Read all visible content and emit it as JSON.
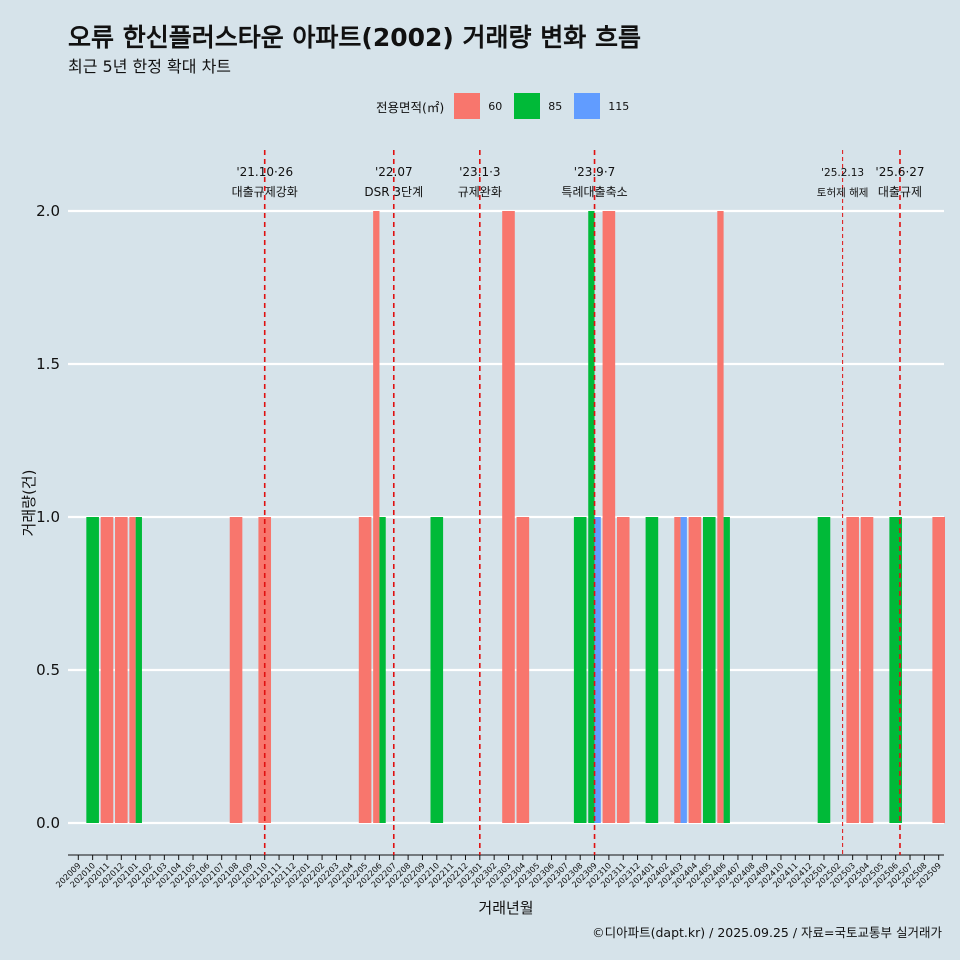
{
  "header": {
    "title": "오류 한신플러스타운 아파트(2002) 거래량 변화 흐름",
    "subtitle": "최근 5년 한정 확대 차트"
  },
  "legend": {
    "title": "전용면적(㎡)",
    "items": [
      {
        "label": "60",
        "color": "#F8766D"
      },
      {
        "label": "85",
        "color": "#00BA38"
      },
      {
        "label": "115",
        "color": "#619CFF"
      }
    ]
  },
  "footer": {
    "caption": "©디아파트(dapt.kr) / 2025.09.25 / 자료=국토교통부 실거래가"
  },
  "chart_data": {
    "type": "bar",
    "title": "오류 한신플러스타운 아파트(2002) 거래량 변화 흐름",
    "xlabel": "거래년월",
    "ylabel": "거래량(건)",
    "ylim": [
      0,
      2.2
    ],
    "yticks": [
      0.0,
      0.5,
      1.0,
      1.5,
      2.0
    ],
    "ytick_labels": [
      "0.0",
      "0.5",
      "1.0",
      "1.5",
      "2.0"
    ],
    "categories": [
      "202009",
      "202010",
      "202011",
      "202012",
      "202101",
      "202102",
      "202103",
      "202104",
      "202105",
      "202106",
      "202107",
      "202108",
      "202109",
      "202110",
      "202111",
      "202112",
      "202201",
      "202202",
      "202203",
      "202204",
      "202205",
      "202206",
      "202207",
      "202208",
      "202209",
      "202210",
      "202211",
      "202212",
      "202301",
      "202302",
      "202303",
      "202304",
      "202305",
      "202306",
      "202307",
      "202308",
      "202309",
      "202310",
      "202311",
      "202312",
      "202401",
      "202402",
      "202403",
      "202404",
      "202405",
      "202406",
      "202407",
      "202408",
      "202409",
      "202410",
      "202411",
      "202412",
      "202501",
      "202502",
      "202503",
      "202504",
      "202505",
      "202506",
      "202507",
      "202508",
      "202509"
    ],
    "series": [
      {
        "name": "60",
        "color": "#F8766D",
        "values": [
          0,
          0,
          1,
          1,
          1,
          0,
          0,
          0,
          0,
          0,
          0,
          1,
          0,
          1,
          0,
          0,
          0,
          0,
          0,
          0,
          1,
          2,
          0,
          0,
          0,
          0,
          0,
          0,
          0,
          0,
          2,
          1,
          0,
          0,
          0,
          0,
          0,
          2,
          1,
          0,
          0,
          0,
          1,
          1,
          0,
          2,
          0,
          0,
          0,
          0,
          0,
          0,
          0,
          0,
          1,
          1,
          0,
          0,
          0,
          0,
          1
        ]
      },
      {
        "name": "85",
        "color": "#00BA38",
        "values": [
          0,
          1,
          0,
          0,
          1,
          0,
          0,
          0,
          0,
          0,
          0,
          0,
          0,
          0,
          0,
          0,
          0,
          0,
          0,
          0,
          0,
          1,
          0,
          0,
          0,
          1,
          0,
          0,
          0,
          0,
          0,
          0,
          0,
          0,
          0,
          1,
          2,
          0,
          0,
          0,
          1,
          0,
          0,
          0,
          1,
          1,
          0,
          0,
          0,
          0,
          0,
          0,
          1,
          0,
          0,
          0,
          0,
          1,
          0,
          0,
          0
        ]
      },
      {
        "name": "115",
        "color": "#619CFF",
        "values": [
          0,
          0,
          0,
          0,
          0,
          0,
          0,
          0,
          0,
          0,
          0,
          0,
          0,
          0,
          0,
          0,
          0,
          0,
          0,
          0,
          0,
          0,
          0,
          0,
          0,
          0,
          0,
          0,
          0,
          0,
          0,
          0,
          0,
          0,
          0,
          0,
          1,
          0,
          0,
          0,
          0,
          0,
          1,
          0,
          0,
          0,
          0,
          0,
          0,
          0,
          0,
          0,
          0,
          0,
          0,
          0,
          0,
          0,
          0,
          0,
          0
        ]
      }
    ],
    "annotations": [
      {
        "x": 13.0,
        "date": "'21.10·26",
        "label": "대출규제강화",
        "style": "dashed"
      },
      {
        "x": 22.0,
        "date": "'22.07",
        "label": "DSR 3단계",
        "style": "dashed"
      },
      {
        "x": 28.0,
        "date": "'23.1·3",
        "label": "규제완화",
        "style": "dashed"
      },
      {
        "x": 36.0,
        "date": "'23.9·7",
        "label": "특례대출축소",
        "style": "dashed"
      },
      {
        "x": 53.3,
        "date": "'25.2.13",
        "label": "토허제 해제",
        "style": "thin-dashed"
      },
      {
        "x": 57.3,
        "date": "'25.6·27",
        "label": "대출규제",
        "style": "dashed"
      }
    ]
  }
}
